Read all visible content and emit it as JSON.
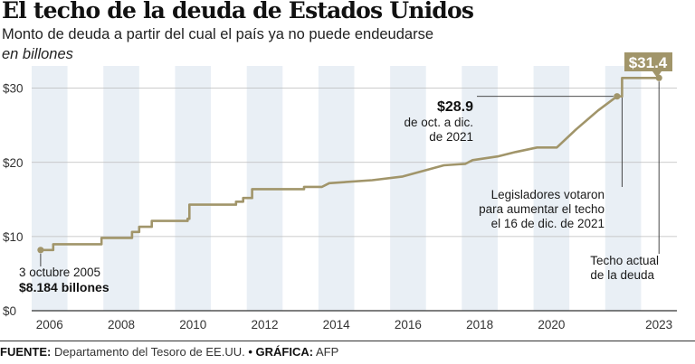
{
  "title": "El techo de la deuda de Estados Unidos",
  "subtitle": "Monto de deuda a partir del cual el país ya no puede endeudarse",
  "units": "en billones",
  "colors": {
    "line": "#a1956a",
    "band": "#e9eff5",
    "badge": "#a1956a"
  },
  "footer": {
    "source_label": "FUENTE:",
    "source_text": "Departamento del Tesoro de EE.UU.",
    "separator": "•",
    "graphic_label": "GRÁFICA:",
    "graphic_text": "AFP"
  },
  "chart_data": {
    "type": "line",
    "x_unit": "year",
    "xlim": [
      2005.5,
      2023.5
    ],
    "ylim": [
      0,
      33
    ],
    "y_ticks": [
      {
        "value": 0,
        "label": "$0"
      },
      {
        "value": 10,
        "label": "$10"
      },
      {
        "value": 20,
        "label": "$20"
      },
      {
        "value": 30,
        "label": "$30"
      }
    ],
    "x_ticks": [
      {
        "value": 2006,
        "label": "2006"
      },
      {
        "value": 2008,
        "label": "2008"
      },
      {
        "value": 2010,
        "label": "2010"
      },
      {
        "value": 2012,
        "label": "2012"
      },
      {
        "value": 2014,
        "label": "2014"
      },
      {
        "value": 2016,
        "label": "2016"
      },
      {
        "value": 2018,
        "label": "2018"
      },
      {
        "value": 2020,
        "label": "2020"
      },
      {
        "value": 2023,
        "label": "2023"
      }
    ],
    "bands": [
      [
        2005.5,
        2006.5
      ],
      [
        2007.5,
        2008.5
      ],
      [
        2009.5,
        2010.5
      ],
      [
        2011.5,
        2012.5
      ],
      [
        2013.5,
        2014.5
      ],
      [
        2015.5,
        2016.5
      ],
      [
        2017.5,
        2018.5
      ],
      [
        2019.5,
        2020.5
      ],
      [
        2021.5,
        2022.5
      ]
    ],
    "points": [
      [
        2005.75,
        8.184
      ],
      [
        2006.1,
        8.184
      ],
      [
        2006.1,
        8.965
      ],
      [
        2007.45,
        8.965
      ],
      [
        2007.45,
        9.815
      ],
      [
        2008.3,
        9.815
      ],
      [
        2008.3,
        10.615
      ],
      [
        2008.5,
        10.615
      ],
      [
        2008.5,
        11.315
      ],
      [
        2008.85,
        11.315
      ],
      [
        2008.85,
        12.104
      ],
      [
        2009.85,
        12.104
      ],
      [
        2009.85,
        12.394
      ],
      [
        2009.9,
        12.394
      ],
      [
        2009.9,
        14.294
      ],
      [
        2011.2,
        14.294
      ],
      [
        2011.2,
        14.694
      ],
      [
        2011.4,
        14.694
      ],
      [
        2011.4,
        15.194
      ],
      [
        2011.65,
        15.194
      ],
      [
        2011.65,
        16.394
      ],
      [
        2013.1,
        16.394
      ],
      [
        2013.1,
        16.7
      ],
      [
        2013.6,
        16.7
      ],
      [
        2013.8,
        17.2
      ],
      [
        2015.0,
        17.6
      ],
      [
        2015.85,
        18.1
      ],
      [
        2017.0,
        19.6
      ],
      [
        2017.6,
        19.8
      ],
      [
        2017.8,
        20.3
      ],
      [
        2018.5,
        20.8
      ],
      [
        2019.0,
        21.4
      ],
      [
        2019.6,
        22.0
      ],
      [
        2020.15,
        22.0
      ],
      [
        2020.7,
        24.5
      ],
      [
        2021.3,
        27.0
      ],
      [
        2021.83,
        28.9
      ],
      [
        2021.97,
        28.9
      ],
      [
        2021.97,
        31.381
      ],
      [
        2023.0,
        31.381
      ]
    ],
    "markers": [
      {
        "x": 2005.75,
        "y": 8.184
      },
      {
        "x": 2021.83,
        "y": 28.9
      },
      {
        "x": 2023.0,
        "y": 31.381
      }
    ],
    "annotations": {
      "start_date": "3 octubre 2005",
      "start_value": "$8.184 billones",
      "oct_value": "$28.9",
      "oct_line1": "de oct. a dic.",
      "oct_line2": "de 2021",
      "vote_line1": "Legisladores votaron",
      "vote_line2": "para aumentar el techo",
      "vote_line3": "el 16 de dic. de 2021",
      "current_line1": "Techo actual",
      "current_line2": "de la deuda",
      "badge": "$31.4"
    }
  }
}
